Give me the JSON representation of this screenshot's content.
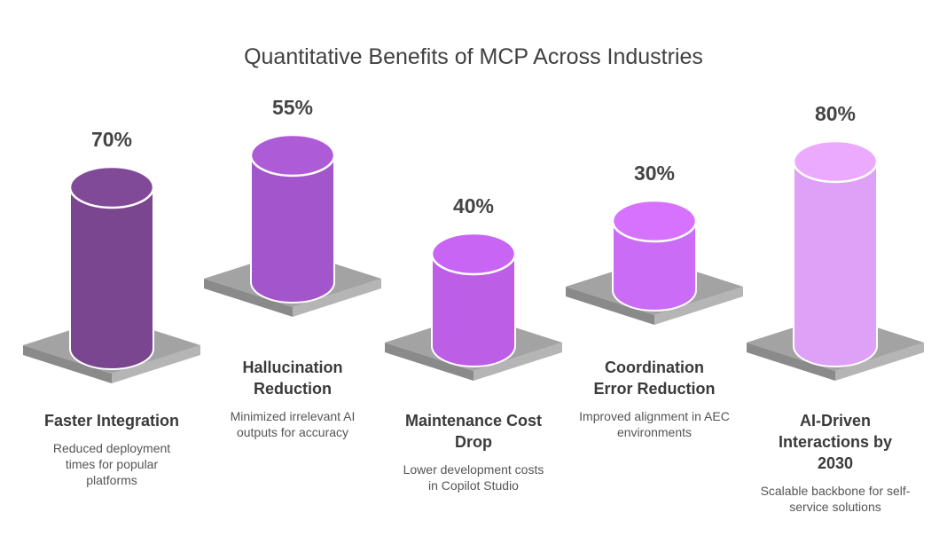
{
  "title": "Quantitative Benefits of MCP Across Industries",
  "chart_data": {
    "type": "bar",
    "categories": [
      "Faster Integration",
      "Hallucination Reduction",
      "Maintenance Cost Drop",
      "Coordination Error Reduction",
      "AI-Driven Interactions by 2030"
    ],
    "values": [
      70,
      55,
      40,
      30,
      80
    ],
    "value_labels": [
      "70%",
      "55%",
      "40%",
      "30%",
      "80%"
    ],
    "descriptions": [
      "Reduced deployment times for popular platforms",
      "Minimized irrelevant AI outputs for accuracy",
      "Lower development costs in Copilot Studio",
      "Improved alignment in AEC environments",
      "Scalable backbone for self-service solutions"
    ],
    "colors": [
      "#7a4690",
      "#a356cb",
      "#bd5fe6",
      "#cb6cf7",
      "#dfa0f7"
    ]
  }
}
